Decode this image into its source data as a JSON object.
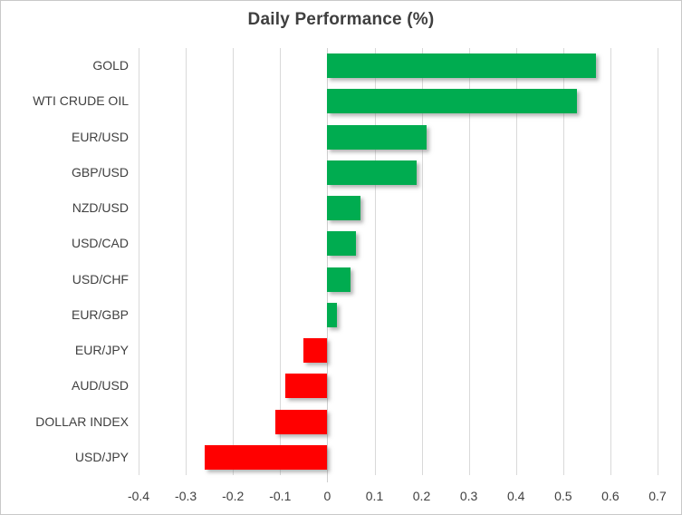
{
  "chart": {
    "title": "Daily Performance (%)",
    "colors": {
      "positive": "#00AC50",
      "negative": "#FF0000",
      "gridline": "#D9D9D9",
      "text": "#404040",
      "border": "#C9C9C9",
      "background": "#FFFFFF"
    }
  },
  "chart_data": {
    "type": "bar",
    "orientation": "horizontal",
    "title": "Daily Performance (%)",
    "categories": [
      "GOLD",
      "WTI CRUDE OIL",
      "EUR/USD",
      "GBP/USD",
      "NZD/USD",
      "USD/CAD",
      "USD/CHF",
      "EUR/GBP",
      "EUR/JPY",
      "AUD/USD",
      "DOLLAR INDEX",
      "USD/JPY"
    ],
    "values": [
      0.57,
      0.53,
      0.21,
      0.19,
      0.07,
      0.06,
      0.05,
      0.02,
      -0.05,
      -0.09,
      -0.11,
      -0.26
    ],
    "xlabel": "",
    "ylabel": "",
    "xlim": [
      -0.4,
      0.7
    ],
    "xticks": [
      "-0.4",
      "-0.3",
      "-0.2",
      "-0.1",
      "0",
      "0.1",
      "0.2",
      "0.3",
      "0.4",
      "0.5",
      "0.6",
      "0.7"
    ],
    "grid": true,
    "legend": false,
    "positive_color": "#00AC50",
    "negative_color": "#FF0000"
  }
}
